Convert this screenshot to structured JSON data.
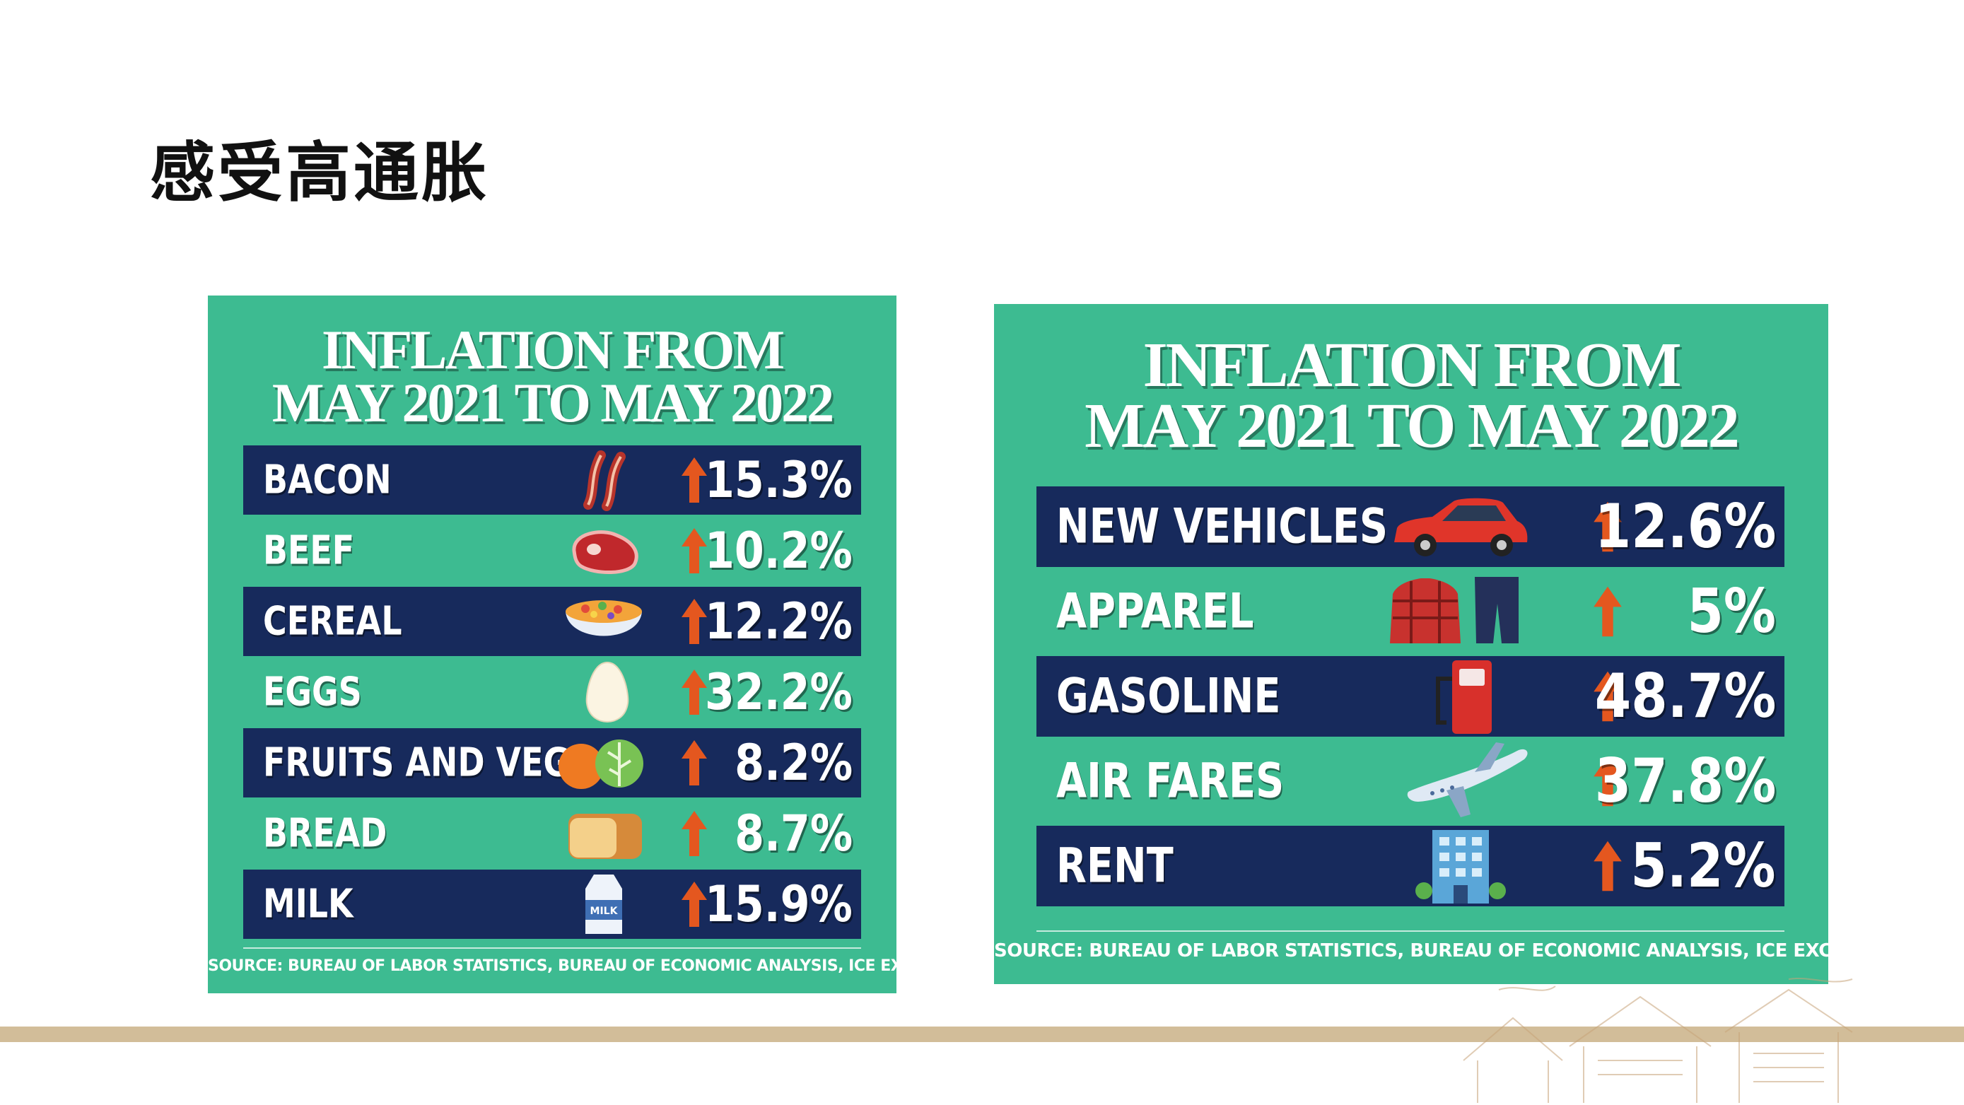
{
  "page": {
    "title": "感受高通胀"
  },
  "panel_left": {
    "heading_line1": "INFLATION FROM",
    "heading_line2": "MAY 2021 TO MAY 2022",
    "rows": [
      {
        "label": "BACON",
        "value": "15.3%",
        "icon": "bacon-icon"
      },
      {
        "label": "BEEF",
        "value": "10.2%",
        "icon": "steak-icon"
      },
      {
        "label": "CEREAL",
        "value": "12.2%",
        "icon": "cereal-bowl-icon"
      },
      {
        "label": "EGGS",
        "value": "32.2%",
        "icon": "egg-icon"
      },
      {
        "label": "FRUITS AND VEG",
        "value": "8.2%",
        "icon": "fruit-veg-icon"
      },
      {
        "label": "BREAD",
        "value": "8.7%",
        "icon": "bread-icon"
      },
      {
        "label": "MILK",
        "value": "15.9%",
        "icon": "milk-carton-icon",
        "icon_text": "MILK"
      }
    ],
    "source": "SOURCE: BUREAU OF LABOR STATISTICS, BUREAU OF ECONOMIC ANALYSIS, ICE EXCHANGE"
  },
  "panel_right": {
    "heading_line1": "INFLATION FROM",
    "heading_line2": "MAY 2021 TO MAY 2022",
    "rows": [
      {
        "label": "NEW VEHICLES",
        "value": "12.6%",
        "icon": "car-icon"
      },
      {
        "label": "APPAREL",
        "value": "5%",
        "icon": "apparel-icon"
      },
      {
        "label": "GASOLINE",
        "value": "48.7%",
        "icon": "gas-pump-icon"
      },
      {
        "label": "AIR FARES",
        "value": "37.8%",
        "icon": "airplane-icon"
      },
      {
        "label": "RENT",
        "value": "5.2%",
        "icon": "building-icon"
      }
    ],
    "source": "SOURCE: BUREAU OF LABOR STATISTICS, BUREAU OF ECONOMIC ANALYSIS, ICE EXCHANGE"
  },
  "colors": {
    "panel_green": "#3dbb91",
    "row_navy": "#172a5c",
    "arrow_orange": "#e4571f",
    "rule_tan": "#d2bd99"
  }
}
